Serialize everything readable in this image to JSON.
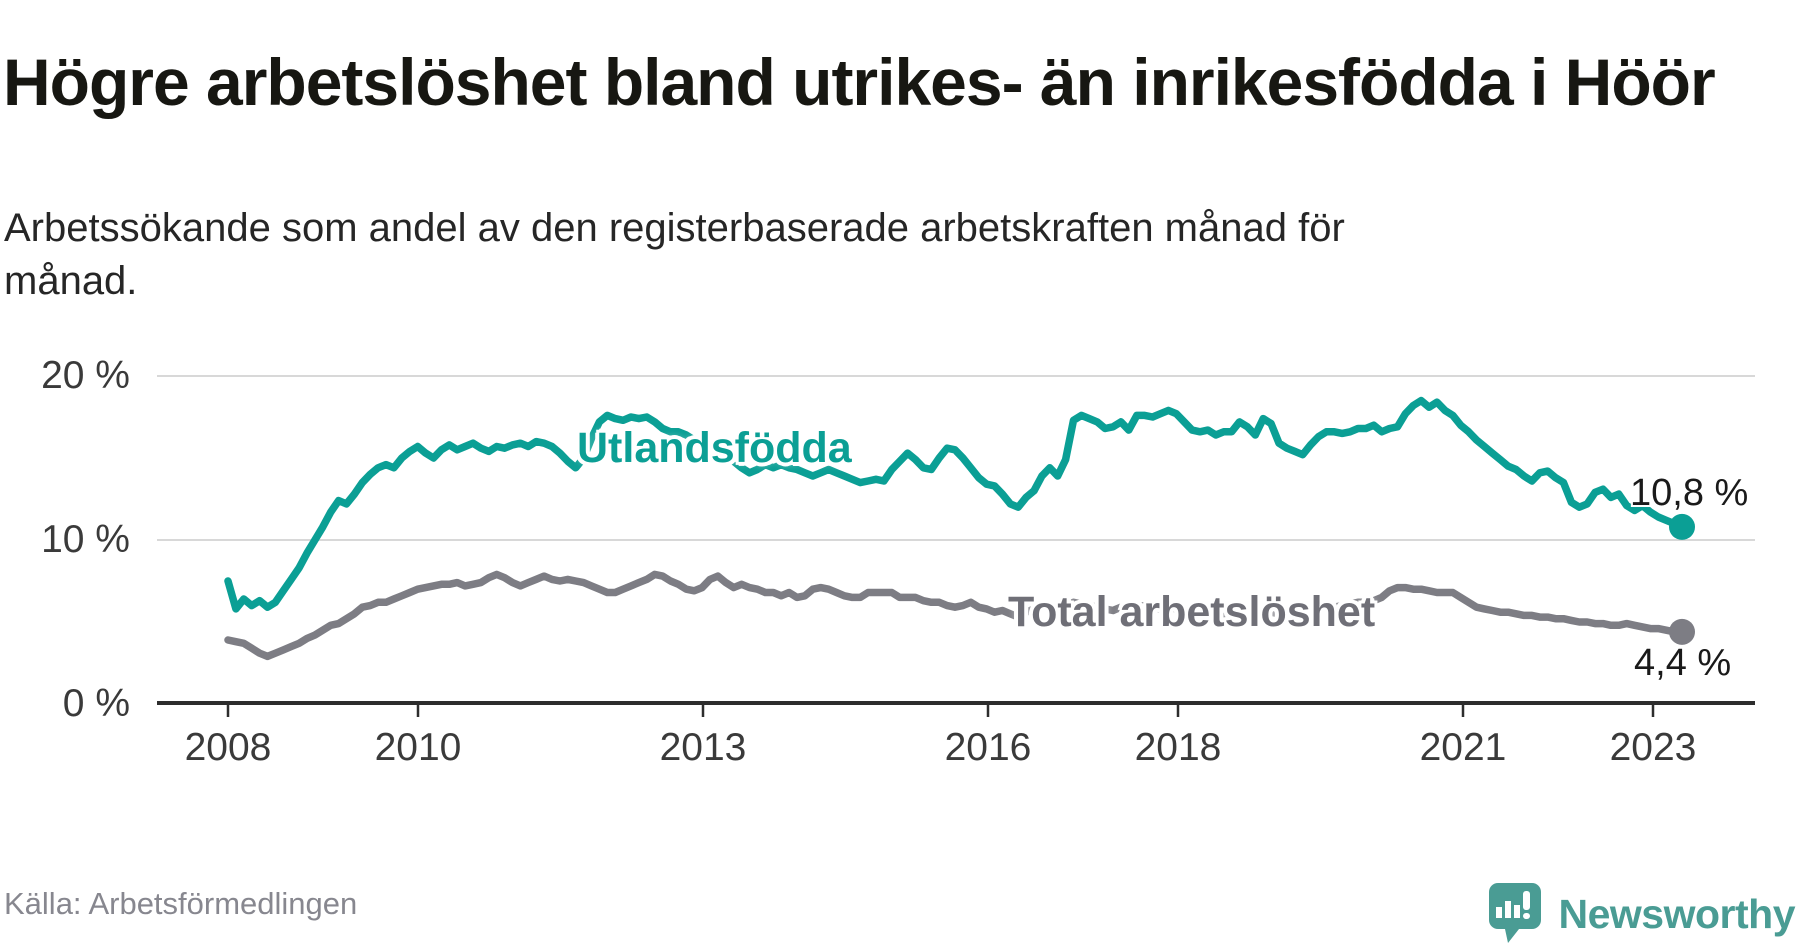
{
  "chart_data": {
    "type": "line",
    "title": "Högre arbetslöshet bland utrikes- än inrikesfödda i Höör",
    "subtitle": "Arbetssökande som andel av den registerbaserade arbetskraften månad för månad.",
    "x_start": "2008-01",
    "x_end": "2023-05",
    "x_frequency": "monthly",
    "ylim": [
      0,
      21
    ],
    "grid": "horizontal",
    "legend_position": "inline-labels",
    "y_ticks": [
      {
        "label": "20 %",
        "value": 20
      },
      {
        "label": "10 %",
        "value": 10
      },
      {
        "label": "0 %",
        "value": 0
      }
    ],
    "x_ticks": [
      {
        "label": "2008",
        "year": 2008
      },
      {
        "label": "2010",
        "year": 2010
      },
      {
        "label": "2013",
        "year": 2013
      },
      {
        "label": "2016",
        "year": 2016
      },
      {
        "label": "2018",
        "year": 2018
      },
      {
        "label": "2021",
        "year": 2021
      },
      {
        "label": "2023",
        "year": 2023
      }
    ],
    "series": [
      {
        "name": "Utlandsfödda",
        "color": "#0b9f95",
        "end_label": "10,8 %",
        "end_value": 10.8,
        "values": [
          7.5,
          5.8,
          6.4,
          6.0,
          6.3,
          5.9,
          6.2,
          6.9,
          7.6,
          8.3,
          9.2,
          10.0,
          10.8,
          11.7,
          12.4,
          12.2,
          12.8,
          13.5,
          14.0,
          14.4,
          14.6,
          14.4,
          15.0,
          15.4,
          15.7,
          15.3,
          15.0,
          15.5,
          15.8,
          15.5,
          15.7,
          15.9,
          15.6,
          15.4,
          15.7,
          15.6,
          15.8,
          15.9,
          15.7,
          16.0,
          15.9,
          15.7,
          15.3,
          14.8,
          14.4,
          15.0,
          16.2,
          17.2,
          17.6,
          17.4,
          17.3,
          17.5,
          17.4,
          17.5,
          17.2,
          16.8,
          16.6,
          16.6,
          16.4,
          16.1,
          15.9,
          15.7,
          15.4,
          15.1,
          14.8,
          14.4,
          14.1,
          14.3,
          14.6,
          14.4,
          14.6,
          14.4,
          14.3,
          14.1,
          13.9,
          14.1,
          14.3,
          14.1,
          13.9,
          13.7,
          13.5,
          13.6,
          13.7,
          13.6,
          14.3,
          14.8,
          15.3,
          14.9,
          14.4,
          14.3,
          15.0,
          15.6,
          15.5,
          15.0,
          14.4,
          13.8,
          13.4,
          13.3,
          12.8,
          12.2,
          12.0,
          12.6,
          13.0,
          13.9,
          14.4,
          13.9,
          14.9,
          17.3,
          17.6,
          17.4,
          17.2,
          16.8,
          16.9,
          17.2,
          16.7,
          17.6,
          17.6,
          17.5,
          17.7,
          17.9,
          17.7,
          17.2,
          16.7,
          16.6,
          16.7,
          16.4,
          16.6,
          16.6,
          17.2,
          16.9,
          16.4,
          17.4,
          17.1,
          15.9,
          15.6,
          15.4,
          15.2,
          15.8,
          16.3,
          16.6,
          16.6,
          16.5,
          16.6,
          16.8,
          16.8,
          17.0,
          16.6,
          16.8,
          16.9,
          17.7,
          18.2,
          18.5,
          18.1,
          18.4,
          17.9,
          17.6,
          17.0,
          16.6,
          16.1,
          15.7,
          15.3,
          14.9,
          14.5,
          14.3,
          13.9,
          13.6,
          14.1,
          14.2,
          13.8,
          13.5,
          12.3,
          12.0,
          12.2,
          12.9,
          13.1,
          12.6,
          12.8,
          12.1,
          11.8,
          12.1,
          11.7,
          11.4,
          11.2,
          11.0,
          10.8
        ]
      },
      {
        "name": "Total arbetslöshet",
        "color": "#7d7d84",
        "end_label": "4,4 %",
        "end_value": 4.4,
        "values": [
          3.9,
          3.8,
          3.7,
          3.4,
          3.1,
          2.9,
          3.1,
          3.3,
          3.5,
          3.7,
          4.0,
          4.2,
          4.5,
          4.8,
          4.9,
          5.2,
          5.5,
          5.9,
          6.0,
          6.2,
          6.2,
          6.4,
          6.6,
          6.8,
          7.0,
          7.1,
          7.2,
          7.3,
          7.3,
          7.4,
          7.2,
          7.3,
          7.4,
          7.7,
          7.9,
          7.7,
          7.4,
          7.2,
          7.4,
          7.6,
          7.8,
          7.6,
          7.5,
          7.6,
          7.5,
          7.4,
          7.2,
          7.0,
          6.8,
          6.8,
          7.0,
          7.2,
          7.4,
          7.6,
          7.9,
          7.8,
          7.5,
          7.3,
          7.0,
          6.9,
          7.1,
          7.6,
          7.8,
          7.4,
          7.1,
          7.3,
          7.1,
          7.0,
          6.8,
          6.8,
          6.6,
          6.8,
          6.5,
          6.6,
          7.0,
          7.1,
          7.0,
          6.8,
          6.6,
          6.5,
          6.5,
          6.8,
          6.8,
          6.8,
          6.8,
          6.5,
          6.5,
          6.5,
          6.3,
          6.2,
          6.2,
          6.0,
          5.9,
          6.0,
          6.2,
          5.9,
          5.8,
          5.6,
          5.7,
          5.5,
          5.3,
          5.6,
          5.8,
          6.0,
          5.9,
          5.7,
          6.0,
          6.2,
          6.1,
          6.0,
          5.9,
          5.8,
          5.7,
          5.9,
          5.8,
          5.9,
          6.0,
          5.9,
          5.8,
          5.9,
          5.8,
          5.7,
          5.6,
          5.5,
          5.4,
          5.6,
          5.5,
          5.6,
          5.7,
          5.6,
          5.5,
          5.7,
          5.6,
          5.5,
          5.4,
          5.5,
          5.6,
          5.8,
          5.9,
          6.0,
          5.9,
          6.0,
          6.1,
          6.2,
          6.2,
          6.3,
          6.5,
          6.9,
          7.1,
          7.1,
          7.0,
          7.0,
          6.9,
          6.8,
          6.8,
          6.8,
          6.5,
          6.2,
          5.9,
          5.8,
          5.7,
          5.6,
          5.6,
          5.5,
          5.4,
          5.4,
          5.3,
          5.3,
          5.2,
          5.2,
          5.1,
          5.0,
          5.0,
          4.9,
          4.9,
          4.8,
          4.8,
          4.9,
          4.8,
          4.7,
          4.6,
          4.6,
          4.5,
          4.4,
          4.4
        ]
      }
    ],
    "colors": {
      "gridline": "#d8d8d8",
      "axis": "#2d2d2d",
      "accent_teal": "#0b9f95",
      "line_gray": "#7d7d84"
    }
  },
  "footer": {
    "source": "Källa: Arbetsförmedlingen",
    "brand": "Newsworthy"
  }
}
